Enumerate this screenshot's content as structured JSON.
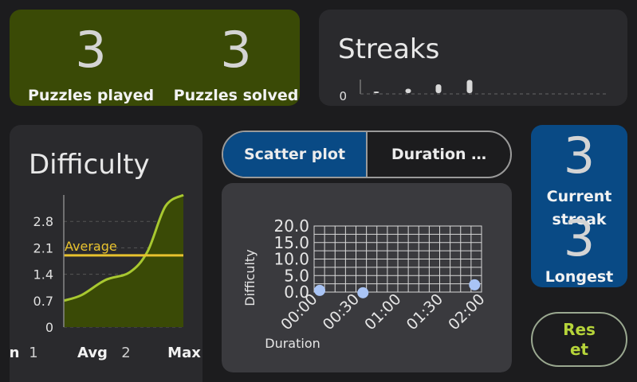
{
  "puzzles": {
    "items": [
      {
        "value": "3",
        "label": "Puzzles played"
      },
      {
        "value": "3",
        "label": "Puzzles solved"
      }
    ]
  },
  "streaks": {
    "title": "Streaks",
    "chart_data": {
      "type": "bar",
      "y_tick_labels": [
        "0"
      ],
      "values": [
        0.2,
        1,
        2,
        3
      ],
      "grid": true
    }
  },
  "difficulty": {
    "title": "Difficulty",
    "average_label": "Average",
    "chart_data": {
      "type": "area",
      "y_tick_labels": [
        "2.8",
        "2.1",
        "1.4",
        "0.7",
        "0"
      ],
      "ylim": [
        0,
        3.5
      ],
      "average": 1.9,
      "x_tick_labels": [
        "Min",
        "1",
        "Avg",
        "2",
        "Max"
      ],
      "curve": [
        [
          0,
          0.7
        ],
        [
          0.15,
          0.85
        ],
        [
          0.35,
          1.25
        ],
        [
          0.55,
          1.45
        ],
        [
          0.7,
          2.0
        ],
        [
          0.85,
          3.2
        ],
        [
          1.0,
          3.5
        ]
      ],
      "colors": {
        "line": "#a8c830",
        "fill": "#3a4a06",
        "average": "#e8c22e"
      }
    }
  },
  "scatter": {
    "tabs": [
      {
        "label": "Scatter plot",
        "active": true
      },
      {
        "label": "Duration …",
        "active": false
      }
    ],
    "chart_data": {
      "type": "scatter",
      "xlabel": "Duration",
      "ylabel": "Difficulty",
      "x_tick_labels": [
        "00:00",
        "00:30",
        "01:00",
        "01:30",
        "02:00"
      ],
      "y_tick_labels": [
        "20.0",
        "15.0",
        "10.0",
        "5.0",
        "0.0"
      ],
      "xlim_seconds": [
        0,
        120
      ],
      "ylim": [
        0,
        20
      ],
      "points": [
        [
          4,
          0.5
        ],
        [
          35,
          -0.2
        ],
        [
          115,
          2.2
        ]
      ],
      "point_color": "#a9c4f5"
    }
  },
  "current_streak": {
    "value": "3",
    "label": "Current streak",
    "second_value": "3",
    "second_label": "Longest streak"
  },
  "reset_label": "Reset"
}
